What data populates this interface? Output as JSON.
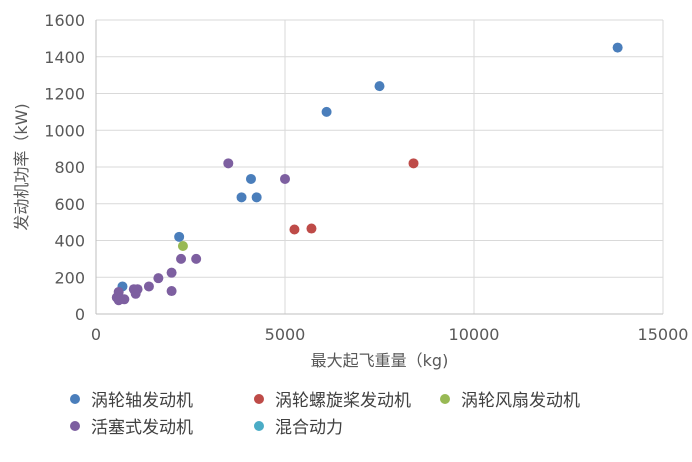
{
  "chart_data": {
    "type": "scatter",
    "title": "",
    "xlabel": "最大起飞重量（kg)",
    "ylabel": "发动机功率（kW)",
    "xlim": [
      0,
      15000
    ],
    "ylim": [
      0,
      1600
    ],
    "x_ticks": [
      0,
      5000,
      10000,
      15000
    ],
    "y_ticks": [
      0,
      200,
      400,
      600,
      800,
      1000,
      1200,
      1400,
      1600
    ],
    "x_tick_labels": [
      "0",
      "5000",
      "10000",
      "15000"
    ],
    "y_tick_labels": [
      "0",
      "200",
      "400",
      "600",
      "800",
      "1000",
      "1200",
      "1400",
      "1600"
    ],
    "grid": true,
    "legend_position": "bottom",
    "series": [
      {
        "name": "涡轮轴发动机",
        "color": "#4a7ebb",
        "points": [
          [
            13800,
            1450
          ],
          [
            7500,
            1240
          ],
          [
            6100,
            1100
          ],
          [
            4100,
            735
          ],
          [
            3850,
            635
          ],
          [
            4250,
            635
          ],
          [
            2200,
            420
          ],
          [
            700,
            150
          ]
        ]
      },
      {
        "name": "涡轮螺旋桨发动机",
        "color": "#be4b48",
        "points": [
          [
            8400,
            820
          ],
          [
            5700,
            465
          ],
          [
            5250,
            460
          ]
        ]
      },
      {
        "name": "涡轮风扇发动机",
        "color": "#98b954",
        "points": [
          [
            2300,
            370
          ]
        ]
      },
      {
        "name": "活塞式发动机",
        "color": "#7d5fa0",
        "points": [
          [
            3500,
            820
          ],
          [
            5000,
            735
          ],
          [
            2650,
            300
          ],
          [
            2250,
            300
          ],
          [
            2000,
            225
          ],
          [
            2000,
            125
          ],
          [
            1650,
            195
          ],
          [
            1400,
            150
          ],
          [
            1100,
            135
          ],
          [
            1000,
            135
          ],
          [
            1050,
            110
          ],
          [
            600,
            120
          ],
          [
            550,
            90
          ],
          [
            600,
            75
          ],
          [
            650,
            85
          ],
          [
            750,
            80
          ]
        ]
      },
      {
        "name": "混合动力",
        "color": "#4bacc6",
        "points": []
      }
    ]
  }
}
